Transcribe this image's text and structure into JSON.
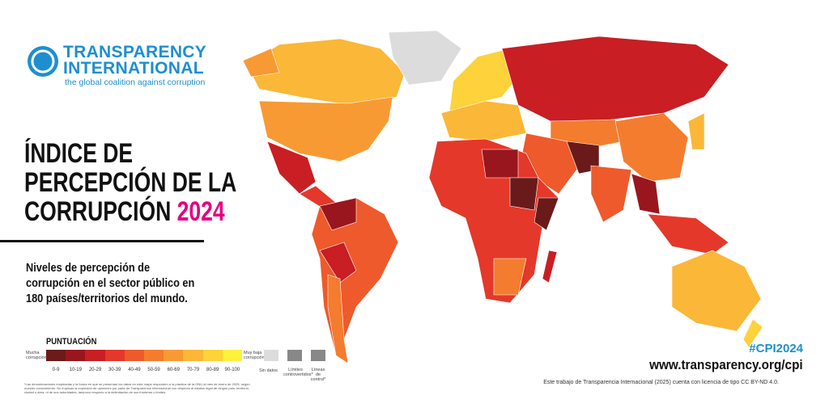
{
  "logo": {
    "name_line1": "TRANSPARENCY",
    "name_line2": "INTERNATIONAL",
    "tagline": "the global coalition against corruption"
  },
  "title": {
    "line1": "ÍNDICE DE",
    "line2": "PERCEPCIÓN DE LA",
    "line3": "CORRUPCIÓN",
    "year": "2024"
  },
  "subtitle": [
    "Niveles de percepción de",
    "corrupción en el sector público en",
    "180 países/territorios del mundo."
  ],
  "legend": {
    "title": "PUNTUACIÓN",
    "low_label": "Mucha corrupción",
    "high_label": "Muy baja corrupción",
    "bins": [
      {
        "label": "0-9",
        "color": "#6b1a1a"
      },
      {
        "label": "10-19",
        "color": "#99161e"
      },
      {
        "label": "20-29",
        "color": "#c81e24"
      },
      {
        "label": "30-39",
        "color": "#e4382a"
      },
      {
        "label": "40-49",
        "color": "#ee5a2b"
      },
      {
        "label": "50-59",
        "color": "#f47c2e"
      },
      {
        "label": "60-69",
        "color": "#f89a33"
      },
      {
        "label": "70-79",
        "color": "#fbb737"
      },
      {
        "label": "80-89",
        "color": "#fdd23a"
      },
      {
        "label": "90-100",
        "color": "#fff13c"
      }
    ],
    "no_data": "Sin datos",
    "disputed": "Límites controvertidos*",
    "control": "Líneas de control*"
  },
  "footnote": "*Las denominaciones empleadas y la forma en que se presentan los datos en este mapa responden a la práctica de la ONU al mes de enero de 2025, según nuestro conocimiento. No implican la expresión de opiniones por parte de Transparencia Internacional con respecto al estatus legal de ningún país, territorio, ciudad o área, ni de sus autoridades, tampoco respecto a la delimitación de sus fronteras o límites.",
  "hashtag": "#CPI2024",
  "url": "www.transparency.org/cpi",
  "license": "Este trabajo de Transparencia Internacional (2025) cuenta con licencia de tipo CC BY-ND 4.0."
}
